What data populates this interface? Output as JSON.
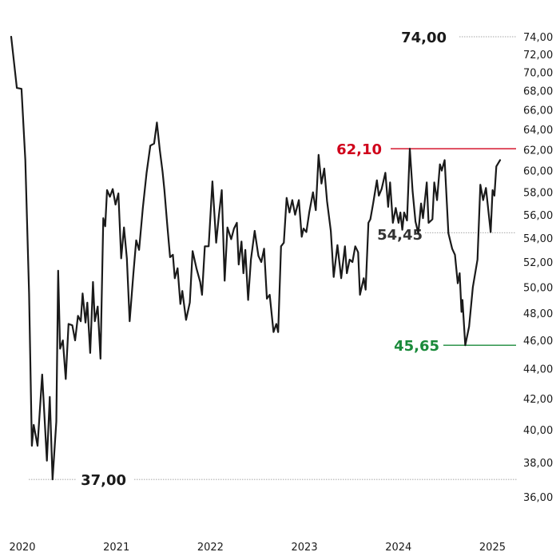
{
  "chart_data": {
    "type": "line",
    "title": "",
    "xlabel": "",
    "ylabel": "",
    "xlim": [
      2020.0,
      2025.37
    ],
    "ylim": [
      35.0,
      75.0
    ],
    "y_scale": "log",
    "y_ticks": [
      "74,00",
      "72,00",
      "70,00",
      "68,00",
      "66,00",
      "64,00",
      "62,00",
      "60,00",
      "58,00",
      "56,00",
      "54,00",
      "52,00",
      "50,00",
      "48,00",
      "46,00",
      "44,00",
      "42,00",
      "40,00",
      "38,00",
      "36,00"
    ],
    "y_tick_values": [
      74,
      72,
      70,
      68,
      66,
      64,
      62,
      60,
      58,
      56,
      54,
      52,
      50,
      48,
      46,
      44,
      42,
      40,
      38,
      36
    ],
    "x_ticks": [
      "2020",
      "2021",
      "2022",
      "2023",
      "2024",
      "2025"
    ],
    "x_tick_values": [
      2020,
      2021,
      2022,
      2023,
      2024,
      2025
    ],
    "grid": false,
    "line_color": "#1a1a1a",
    "annotations": [
      {
        "label": "74,00",
        "value": 74.0,
        "color": "#1a1a1a",
        "style": "dotted"
      },
      {
        "label": "62,10",
        "value": 62.1,
        "color": "#d0021b",
        "style": "solid"
      },
      {
        "label": "54,45",
        "value": 54.45,
        "color": "#333333",
        "style": "dotted"
      },
      {
        "label": "45,65",
        "value": 45.65,
        "color": "#1a8a3a",
        "style": "solid"
      },
      {
        "label": "37,00",
        "value": 37.0,
        "color": "#1a1a1a",
        "style": "dotted"
      }
    ],
    "series": [
      {
        "values": [
          [
            2020.0,
            74.0
          ],
          [
            2020.06,
            68.3
          ],
          [
            2020.11,
            68.2
          ],
          [
            2020.15,
            61.0
          ],
          [
            2020.19,
            49.5
          ],
          [
            2020.22,
            39.0
          ],
          [
            2020.24,
            40.3
          ],
          [
            2020.28,
            39.0
          ],
          [
            2020.33,
            43.6
          ],
          [
            2020.38,
            38.1
          ],
          [
            2020.41,
            42.1
          ],
          [
            2020.44,
            37.0
          ],
          [
            2020.48,
            40.5
          ],
          [
            2020.5,
            51.3
          ],
          [
            2020.52,
            45.4
          ],
          [
            2020.55,
            46.0
          ],
          [
            2020.58,
            43.3
          ],
          [
            2020.61,
            47.2
          ],
          [
            2020.65,
            47.1
          ],
          [
            2020.68,
            46.0
          ],
          [
            2020.71,
            47.8
          ],
          [
            2020.74,
            47.4
          ],
          [
            2020.76,
            49.5
          ],
          [
            2020.79,
            47.3
          ],
          [
            2020.81,
            48.8
          ],
          [
            2020.84,
            45.1
          ],
          [
            2020.87,
            50.4
          ],
          [
            2020.89,
            47.4
          ],
          [
            2020.92,
            48.5
          ],
          [
            2020.95,
            44.7
          ],
          [
            2020.98,
            55.7
          ],
          [
            2021.0,
            55.0
          ],
          [
            2021.02,
            58.2
          ],
          [
            2021.05,
            57.6
          ],
          [
            2021.08,
            58.3
          ],
          [
            2021.11,
            56.9
          ],
          [
            2021.14,
            57.9
          ],
          [
            2021.17,
            52.3
          ],
          [
            2021.2,
            54.9
          ],
          [
            2021.23,
            52.3
          ],
          [
            2021.26,
            47.4
          ],
          [
            2021.3,
            51.1
          ],
          [
            2021.33,
            53.8
          ],
          [
            2021.36,
            53.0
          ],
          [
            2021.4,
            56.6
          ],
          [
            2021.44,
            59.8
          ],
          [
            2021.48,
            62.4
          ],
          [
            2021.52,
            62.6
          ],
          [
            2021.55,
            64.7
          ],
          [
            2021.58,
            62.0
          ],
          [
            2021.61,
            59.9
          ],
          [
            2021.63,
            58.2
          ],
          [
            2021.66,
            55.1
          ],
          [
            2021.69,
            52.4
          ],
          [
            2021.72,
            52.6
          ],
          [
            2021.74,
            50.7
          ],
          [
            2021.77,
            51.5
          ],
          [
            2021.8,
            48.7
          ],
          [
            2021.82,
            49.7
          ],
          [
            2021.86,
            47.5
          ],
          [
            2021.9,
            48.8
          ],
          [
            2021.93,
            52.9
          ],
          [
            2021.97,
            51.5
          ],
          [
            2022.01,
            50.4
          ],
          [
            2022.03,
            49.4
          ],
          [
            2022.06,
            53.3
          ],
          [
            2022.1,
            53.3
          ],
          [
            2022.14,
            59.0
          ],
          [
            2022.18,
            53.6
          ],
          [
            2022.21,
            56.0
          ],
          [
            2022.24,
            58.2
          ],
          [
            2022.27,
            50.5
          ],
          [
            2022.3,
            54.9
          ],
          [
            2022.34,
            53.9
          ],
          [
            2022.37,
            54.8
          ],
          [
            2022.4,
            55.3
          ],
          [
            2022.42,
            51.8
          ],
          [
            2022.45,
            53.7
          ],
          [
            2022.47,
            51.1
          ],
          [
            2022.49,
            53.0
          ],
          [
            2022.52,
            49.0
          ],
          [
            2022.55,
            52.2
          ],
          [
            2022.59,
            54.6
          ],
          [
            2022.63,
            52.5
          ],
          [
            2022.66,
            52.0
          ],
          [
            2022.69,
            53.1
          ],
          [
            2022.72,
            49.1
          ],
          [
            2022.75,
            49.4
          ],
          [
            2022.79,
            46.6
          ],
          [
            2022.82,
            47.2
          ],
          [
            2022.84,
            46.6
          ],
          [
            2022.87,
            53.3
          ],
          [
            2022.9,
            53.6
          ],
          [
            2022.93,
            57.5
          ],
          [
            2022.96,
            56.2
          ],
          [
            2022.99,
            57.3
          ],
          [
            2023.02,
            56.0
          ],
          [
            2023.06,
            57.3
          ],
          [
            2023.09,
            54.1
          ],
          [
            2023.11,
            54.8
          ],
          [
            2023.14,
            54.5
          ],
          [
            2023.17,
            56.2
          ],
          [
            2023.21,
            58.0
          ],
          [
            2023.24,
            56.4
          ],
          [
            2023.27,
            61.5
          ],
          [
            2023.3,
            58.8
          ],
          [
            2023.33,
            60.2
          ],
          [
            2023.36,
            57.2
          ],
          [
            2023.4,
            54.6
          ],
          [
            2023.43,
            50.8
          ],
          [
            2023.47,
            53.4
          ],
          [
            2023.51,
            50.7
          ],
          [
            2023.55,
            53.3
          ],
          [
            2023.57,
            51.1
          ],
          [
            2023.6,
            52.2
          ],
          [
            2023.63,
            52.0
          ],
          [
            2023.66,
            53.3
          ],
          [
            2023.69,
            52.8
          ],
          [
            2023.71,
            49.4
          ],
          [
            2023.75,
            50.7
          ],
          [
            2023.77,
            49.8
          ],
          [
            2023.8,
            55.3
          ],
          [
            2023.82,
            55.6
          ],
          [
            2023.85,
            57.0
          ],
          [
            2023.89,
            59.1
          ],
          [
            2023.91,
            57.7
          ],
          [
            2023.94,
            58.3
          ],
          [
            2023.98,
            59.8
          ],
          [
            2024.01,
            56.7
          ],
          [
            2024.03,
            58.9
          ],
          [
            2024.06,
            55.3
          ],
          [
            2024.09,
            56.6
          ],
          [
            2024.12,
            55.3
          ],
          [
            2024.14,
            56.2
          ],
          [
            2024.16,
            54.7
          ],
          [
            2024.18,
            56.2
          ],
          [
            2024.21,
            55.5
          ],
          [
            2024.24,
            62.1
          ],
          [
            2024.27,
            58.1
          ],
          [
            2024.3,
            55.4
          ],
          [
            2024.33,
            54.4
          ],
          [
            2024.36,
            57.0
          ],
          [
            2024.38,
            55.7
          ],
          [
            2024.42,
            58.9
          ],
          [
            2024.44,
            55.3
          ],
          [
            2024.48,
            55.6
          ],
          [
            2024.5,
            58.9
          ],
          [
            2024.53,
            57.3
          ],
          [
            2024.56,
            60.6
          ],
          [
            2024.58,
            60.0
          ],
          [
            2024.61,
            61.0
          ],
          [
            2024.65,
            54.4
          ],
          [
            2024.69,
            53.1
          ],
          [
            2024.72,
            52.6
          ],
          [
            2024.75,
            50.3
          ],
          [
            2024.77,
            51.1
          ],
          [
            2024.79,
            48.1
          ],
          [
            2024.8,
            49.0
          ],
          [
            2024.83,
            45.65
          ],
          [
            2024.87,
            47.0
          ],
          [
            2024.91,
            50.0
          ],
          [
            2024.96,
            52.2
          ],
          [
            2024.99,
            58.7
          ],
          [
            2025.02,
            57.3
          ],
          [
            2025.05,
            58.4
          ],
          [
            2025.1,
            54.5
          ],
          [
            2025.12,
            58.2
          ],
          [
            2025.14,
            57.7
          ],
          [
            2025.16,
            60.4
          ],
          [
            2025.2,
            61.0
          ]
        ]
      }
    ]
  }
}
